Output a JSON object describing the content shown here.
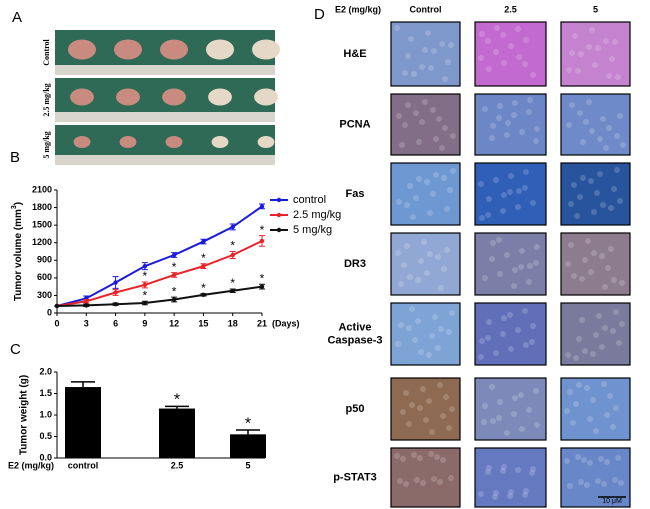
{
  "panels": {
    "a": "A",
    "b": "B",
    "c": "C",
    "d": "D"
  },
  "photos": {
    "rows": [
      "Control",
      "2.5 mg/kg",
      "5 mg/kg"
    ]
  },
  "chart_data": [
    {
      "type": "line",
      "y_label": [
        "Tumor volume (mm",
        "3",
        ")"
      ],
      "x_unit": "(Days)",
      "x": [
        0,
        3,
        6,
        9,
        12,
        15,
        18,
        21
      ],
      "xlim": [
        0,
        21
      ],
      "xticks": [
        0,
        3,
        6,
        9,
        12,
        15,
        18,
        21
      ],
      "ylim": [
        0,
        2100
      ],
      "yticks": [
        0,
        300,
        600,
        900,
        1200,
        1500,
        1800,
        2100
      ],
      "series": [
        {
          "name": "control",
          "color": "#1a1adb",
          "values": [
            120,
            250,
            520,
            800,
            990,
            1220,
            1470,
            1820
          ],
          "errors": [
            0,
            40,
            100,
            60,
            40,
            40,
            50,
            40
          ],
          "annotations": [
            null,
            null,
            null,
            null,
            null,
            null,
            null,
            null
          ]
        },
        {
          "name": "2.5 mg/kg",
          "color": "#e8232a",
          "values": [
            120,
            200,
            350,
            480,
            650,
            800,
            990,
            1230
          ],
          "errors": [
            0,
            30,
            50,
            50,
            40,
            40,
            60,
            90
          ],
          "annotations": [
            null,
            null,
            null,
            "*",
            "*",
            "*",
            "*",
            "*"
          ]
        },
        {
          "name": "5 mg/kg",
          "color": "#111111",
          "values": [
            120,
            130,
            150,
            170,
            230,
            310,
            380,
            450
          ],
          "errors": [
            0,
            20,
            20,
            30,
            40,
            20,
            30,
            40
          ],
          "annotations": [
            null,
            null,
            null,
            "*",
            "*",
            "*",
            "*",
            "*"
          ]
        }
      ]
    },
    {
      "type": "bar",
      "y_label": "Tumor weight (g)",
      "x_label": "E2 (mg/kg)",
      "categories": [
        "control",
        "2.5",
        "5"
      ],
      "values": [
        1.65,
        1.15,
        0.55
      ],
      "errors": [
        0.12,
        0.05,
        0.1
      ],
      "annotations": [
        null,
        "*",
        "*"
      ],
      "color": "#000000",
      "ylim": [
        0,
        2.0
      ],
      "yticks": [
        {
          "value": 0,
          "label": "0.0"
        },
        {
          "value": 0.5,
          "label": "0.5"
        },
        {
          "value": 1.0,
          "label": "1.0"
        },
        {
          "value": 1.5,
          "label": "1.5"
        },
        {
          "value": 2.0,
          "label": "2.0"
        }
      ]
    }
  ],
  "micrographs": {
    "header": "E2 (mg/kg)",
    "columns": [
      "Control",
      "2.5",
      "5"
    ],
    "rows": [
      [
        "H&E"
      ],
      [
        "PCNA"
      ],
      [
        "Fas"
      ],
      [
        "DR3"
      ],
      [
        "Active",
        "Caspase-3"
      ],
      [
        "p50"
      ],
      [
        "p-STAT3"
      ]
    ],
    "scale": "10 μM"
  }
}
